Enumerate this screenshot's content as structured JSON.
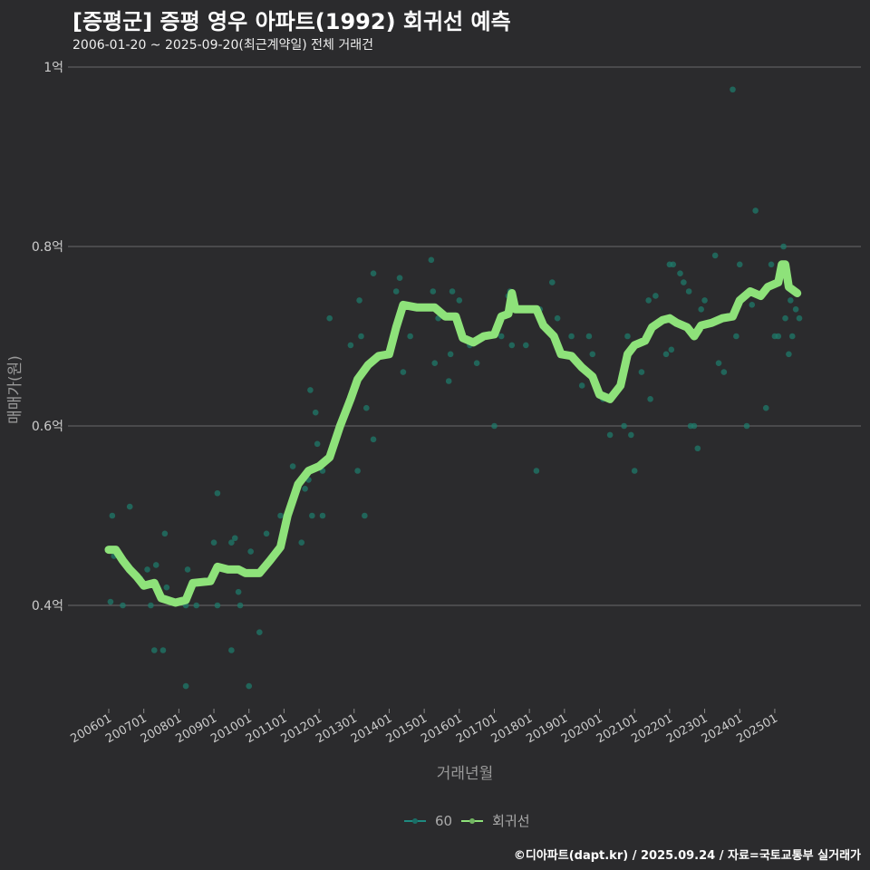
{
  "title": "[증평군] 증평 영우 아파트(1992) 회귀선 예측",
  "subtitle": "2006-01-20 ~ 2025-09-20(최근계약일) 전체 거래건",
  "credit": "©디아파트(dapt.kr) / 2025.09.24 / 자료=국토교통부 실거래가",
  "colors": {
    "scatter": "#1f7a6a",
    "line": "#8ee27a",
    "grid": "#6a6a6a"
  },
  "chart_data": {
    "type": "scatter",
    "xlabel": "거래년월",
    "ylabel": "매매가(원)",
    "xlim": [
      2004.85,
      2026.3
    ],
    "ylim": [
      0.285,
      1.0
    ],
    "grid": true,
    "legend_position": "bottom",
    "y_ticks": [
      {
        "v": 0.4,
        "label": "0.4억"
      },
      {
        "v": 0.6,
        "label": "0.6억"
      },
      {
        "v": 0.8,
        "label": "0.8억"
      },
      {
        "v": 1.0,
        "label": "1억"
      }
    ],
    "x_ticks": [
      "200601",
      "200701",
      "200801",
      "200901",
      "201001",
      "201101",
      "201201",
      "201301",
      "201401",
      "201501",
      "201601",
      "201701",
      "201801",
      "201901",
      "202001",
      "202101",
      "202201",
      "202301",
      "202401",
      "202501"
    ],
    "legend": [
      {
        "name": "60",
        "color": "#1f8a80"
      },
      {
        "name": "회귀선",
        "color": "#8ee27a"
      }
    ],
    "series": [
      {
        "name": "60",
        "type": "scatter",
        "points": [
          [
            2006.05,
            0.404
          ],
          [
            2006.1,
            0.5
          ],
          [
            2006.15,
            0.455
          ],
          [
            2006.4,
            0.4
          ],
          [
            2006.6,
            0.51
          ],
          [
            2006.9,
            0.43
          ],
          [
            2007.1,
            0.44
          ],
          [
            2007.2,
            0.4
          ],
          [
            2007.3,
            0.35
          ],
          [
            2007.35,
            0.445
          ],
          [
            2007.55,
            0.35
          ],
          [
            2007.6,
            0.48
          ],
          [
            2007.65,
            0.42
          ],
          [
            2008.2,
            0.4
          ],
          [
            2008.2,
            0.31
          ],
          [
            2008.25,
            0.44
          ],
          [
            2008.5,
            0.4
          ],
          [
            2008.9,
            0.43
          ],
          [
            2009.0,
            0.47
          ],
          [
            2009.1,
            0.525
          ],
          [
            2009.1,
            0.4
          ],
          [
            2009.5,
            0.35
          ],
          [
            2009.5,
            0.47
          ],
          [
            2009.6,
            0.475
          ],
          [
            2009.7,
            0.415
          ],
          [
            2009.75,
            0.4
          ],
          [
            2010.0,
            0.31
          ],
          [
            2010.05,
            0.46
          ],
          [
            2010.3,
            0.37
          ],
          [
            2010.5,
            0.48
          ],
          [
            2010.9,
            0.5
          ],
          [
            2011.1,
            0.495
          ],
          [
            2011.25,
            0.555
          ],
          [
            2011.5,
            0.47
          ],
          [
            2011.6,
            0.53
          ],
          [
            2011.7,
            0.54
          ],
          [
            2011.75,
            0.64
          ],
          [
            2011.8,
            0.5
          ],
          [
            2011.9,
            0.615
          ],
          [
            2011.95,
            0.58
          ],
          [
            2012.1,
            0.5
          ],
          [
            2012.1,
            0.55
          ],
          [
            2012.3,
            0.72
          ],
          [
            2012.6,
            0.6
          ],
          [
            2012.9,
            0.69
          ],
          [
            2013.1,
            0.55
          ],
          [
            2013.15,
            0.74
          ],
          [
            2013.2,
            0.7
          ],
          [
            2013.3,
            0.5
          ],
          [
            2013.35,
            0.62
          ],
          [
            2013.55,
            0.585
          ],
          [
            2013.55,
            0.77
          ],
          [
            2013.85,
            0.68
          ],
          [
            2014.2,
            0.75
          ],
          [
            2014.3,
            0.765
          ],
          [
            2014.4,
            0.66
          ],
          [
            2014.6,
            0.7
          ],
          [
            2015.2,
            0.785
          ],
          [
            2015.25,
            0.75
          ],
          [
            2015.3,
            0.67
          ],
          [
            2015.4,
            0.72
          ],
          [
            2015.7,
            0.65
          ],
          [
            2015.75,
            0.68
          ],
          [
            2015.8,
            0.75
          ],
          [
            2016.0,
            0.74
          ],
          [
            2016.3,
            0.69
          ],
          [
            2016.5,
            0.67
          ],
          [
            2016.7,
            0.7
          ],
          [
            2017.0,
            0.6
          ],
          [
            2017.2,
            0.7
          ],
          [
            2017.4,
            0.745
          ],
          [
            2017.45,
            0.75
          ],
          [
            2017.5,
            0.69
          ],
          [
            2017.9,
            0.69
          ],
          [
            2018.2,
            0.55
          ],
          [
            2018.3,
            0.73
          ],
          [
            2018.65,
            0.76
          ],
          [
            2018.8,
            0.72
          ],
          [
            2019.2,
            0.7
          ],
          [
            2019.5,
            0.645
          ],
          [
            2019.7,
            0.7
          ],
          [
            2019.8,
            0.68
          ],
          [
            2020.1,
            0.63
          ],
          [
            2020.3,
            0.59
          ],
          [
            2020.6,
            0.65
          ],
          [
            2020.7,
            0.6
          ],
          [
            2020.8,
            0.7
          ],
          [
            2020.9,
            0.59
          ],
          [
            2021.0,
            0.55
          ],
          [
            2021.2,
            0.66
          ],
          [
            2021.4,
            0.74
          ],
          [
            2021.45,
            0.63
          ],
          [
            2021.6,
            0.745
          ],
          [
            2021.9,
            0.68
          ],
          [
            2022.0,
            0.78
          ],
          [
            2022.05,
            0.685
          ],
          [
            2022.1,
            0.78
          ],
          [
            2022.3,
            0.77
          ],
          [
            2022.4,
            0.76
          ],
          [
            2022.55,
            0.75
          ],
          [
            2022.6,
            0.6
          ],
          [
            2022.7,
            0.6
          ],
          [
            2022.8,
            0.575
          ],
          [
            2022.9,
            0.73
          ],
          [
            2023.0,
            0.74
          ],
          [
            2023.3,
            0.79
          ],
          [
            2023.4,
            0.67
          ],
          [
            2023.55,
            0.66
          ],
          [
            2023.9,
            0.7
          ],
          [
            2024.0,
            0.78
          ],
          [
            2024.2,
            0.6
          ],
          [
            2024.35,
            0.735
          ],
          [
            2024.45,
            0.84
          ],
          [
            2024.75,
            0.62
          ],
          [
            2024.9,
            0.78
          ],
          [
            2025.0,
            0.7
          ],
          [
            2025.1,
            0.7
          ],
          [
            2025.3,
            0.72
          ],
          [
            2025.4,
            0.68
          ],
          [
            2025.5,
            0.7
          ],
          [
            2025.6,
            0.75
          ],
          [
            2025.7,
            0.72
          ],
          [
            2023.8,
            0.975
          ],
          [
            2025.25,
            0.8
          ],
          [
            2025.45,
            0.74
          ],
          [
            2025.6,
            0.73
          ]
        ]
      },
      {
        "name": "회귀선",
        "type": "line",
        "points": [
          [
            2006.0,
            0.462
          ],
          [
            2006.2,
            0.462
          ],
          [
            2006.4,
            0.45
          ],
          [
            2006.6,
            0.44
          ],
          [
            2006.8,
            0.432
          ],
          [
            2007.0,
            0.422
          ],
          [
            2007.3,
            0.425
          ],
          [
            2007.5,
            0.408
          ],
          [
            2007.9,
            0.403
          ],
          [
            2008.2,
            0.406
          ],
          [
            2008.4,
            0.425
          ],
          [
            2008.9,
            0.427
          ],
          [
            2009.1,
            0.443
          ],
          [
            2009.4,
            0.44
          ],
          [
            2009.7,
            0.44
          ],
          [
            2009.9,
            0.436
          ],
          [
            2010.3,
            0.436
          ],
          [
            2010.6,
            0.45
          ],
          [
            2010.9,
            0.465
          ],
          [
            2011.1,
            0.5
          ],
          [
            2011.4,
            0.535
          ],
          [
            2011.7,
            0.55
          ],
          [
            2012.0,
            0.555
          ],
          [
            2012.3,
            0.565
          ],
          [
            2012.6,
            0.6
          ],
          [
            2012.9,
            0.63
          ],
          [
            2013.1,
            0.652
          ],
          [
            2013.4,
            0.668
          ],
          [
            2013.7,
            0.678
          ],
          [
            2014.0,
            0.68
          ],
          [
            2014.2,
            0.71
          ],
          [
            2014.4,
            0.735
          ],
          [
            2014.8,
            0.732
          ],
          [
            2015.3,
            0.732
          ],
          [
            2015.6,
            0.722
          ],
          [
            2015.9,
            0.722
          ],
          [
            2016.1,
            0.698
          ],
          [
            2016.4,
            0.693
          ],
          [
            2016.7,
            0.7
          ],
          [
            2017.0,
            0.702
          ],
          [
            2017.2,
            0.722
          ],
          [
            2017.4,
            0.725
          ],
          [
            2017.5,
            0.748
          ],
          [
            2017.6,
            0.73
          ],
          [
            2018.2,
            0.73
          ],
          [
            2018.4,
            0.712
          ],
          [
            2018.7,
            0.7
          ],
          [
            2018.9,
            0.68
          ],
          [
            2019.2,
            0.678
          ],
          [
            2019.5,
            0.665
          ],
          [
            2019.8,
            0.655
          ],
          [
            2020.0,
            0.635
          ],
          [
            2020.3,
            0.63
          ],
          [
            2020.6,
            0.645
          ],
          [
            2020.8,
            0.68
          ],
          [
            2021.0,
            0.69
          ],
          [
            2021.3,
            0.695
          ],
          [
            2021.5,
            0.71
          ],
          [
            2021.8,
            0.718
          ],
          [
            2022.0,
            0.72
          ],
          [
            2022.2,
            0.715
          ],
          [
            2022.5,
            0.71
          ],
          [
            2022.7,
            0.7
          ],
          [
            2022.9,
            0.712
          ],
          [
            2023.2,
            0.715
          ],
          [
            2023.5,
            0.72
          ],
          [
            2023.8,
            0.722
          ],
          [
            2024.0,
            0.74
          ],
          [
            2024.3,
            0.75
          ],
          [
            2024.6,
            0.745
          ],
          [
            2024.8,
            0.755
          ],
          [
            2025.1,
            0.76
          ],
          [
            2025.2,
            0.78
          ],
          [
            2025.3,
            0.78
          ],
          [
            2025.4,
            0.755
          ],
          [
            2025.64,
            0.748
          ]
        ]
      }
    ]
  }
}
